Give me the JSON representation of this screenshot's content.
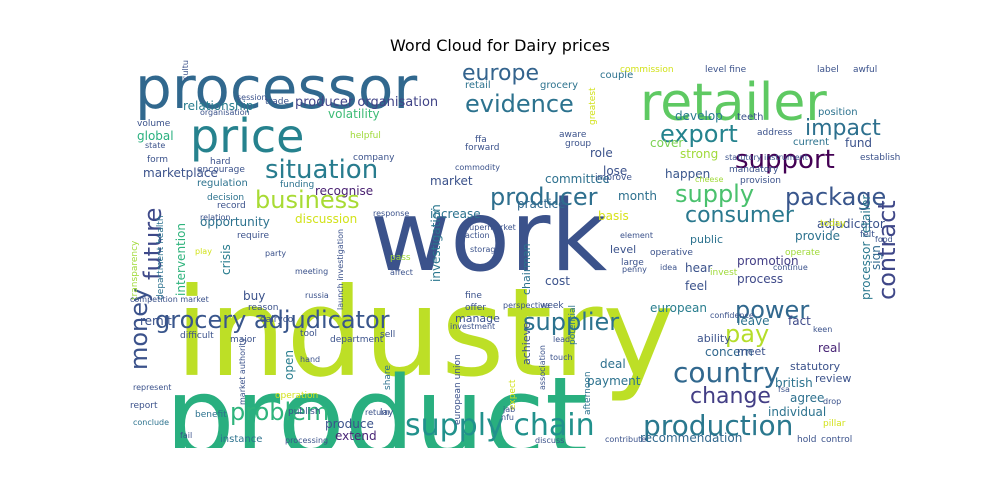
{
  "chart_data": {
    "type": "wordcloud",
    "title": "Word Cloud for Dairy prices",
    "colormap": "viridis",
    "words": [
      {
        "text": "industry",
        "weight": 1.0,
        "color": "#bddf26"
      },
      {
        "text": "product",
        "weight": 0.92,
        "color": "#29af7f"
      },
      {
        "text": "work",
        "weight": 0.76,
        "color": "#3b528b"
      },
      {
        "text": "processor",
        "weight": 0.5,
        "color": "#31688e"
      },
      {
        "text": "retailer",
        "weight": 0.46,
        "color": "#5ec962"
      },
      {
        "text": "price",
        "weight": 0.42,
        "color": "#26828e"
      },
      {
        "text": "supply chain",
        "weight": 0.26,
        "color": "#21918c"
      },
      {
        "text": "production",
        "weight": 0.24,
        "color": "#2a788e"
      },
      {
        "text": "country",
        "weight": 0.24,
        "color": "#31688e"
      },
      {
        "text": "support",
        "weight": 0.23,
        "color": "#440154"
      },
      {
        "text": "situation",
        "weight": 0.22,
        "color": "#287c8e"
      },
      {
        "text": "evidence",
        "weight": 0.21,
        "color": "#2c728e"
      },
      {
        "text": "export",
        "weight": 0.21,
        "color": "#25838e"
      },
      {
        "text": "business",
        "weight": 0.21,
        "color": "#a8db34"
      },
      {
        "text": "producer",
        "weight": 0.21,
        "color": "#2e6f8e"
      },
      {
        "text": "supplier",
        "weight": 0.2,
        "color": "#2c728e"
      },
      {
        "text": "grocery adjudicator",
        "weight": 0.2,
        "color": "#39568c"
      },
      {
        "text": "pay",
        "weight": 0.2,
        "color": "#b5de2b"
      },
      {
        "text": "power",
        "weight": 0.2,
        "color": "#31688e"
      },
      {
        "text": "supply",
        "weight": 0.2,
        "color": "#4ac16d"
      },
      {
        "text": "package",
        "weight": 0.19,
        "color": "#39568c"
      },
      {
        "text": "contract",
        "weight": 0.19,
        "color": "#3f4788"
      },
      {
        "text": "future",
        "weight": 0.19,
        "color": "#3e4989"
      },
      {
        "text": "money",
        "weight": 0.19,
        "color": "#3b528b"
      },
      {
        "text": "europe",
        "weight": 0.19,
        "color": "#33638d"
      },
      {
        "text": "impact",
        "weight": 0.18,
        "color": "#2d708e"
      },
      {
        "text": "consumer",
        "weight": 0.17,
        "color": "#2a788e"
      },
      {
        "text": "problem",
        "weight": 0.17,
        "color": "#2fb47c"
      },
      {
        "text": "change",
        "weight": 0.16,
        "color": "#433e85"
      },
      {
        "text": "producer organisation",
        "weight": 0.11,
        "color": "#414487"
      },
      {
        "text": "relationship",
        "weight": 0.11,
        "color": "#287d8e"
      },
      {
        "text": "volatility",
        "weight": 0.11,
        "color": "#3cbb75"
      },
      {
        "text": "intervention",
        "weight": 0.11,
        "color": "#2eb37c"
      },
      {
        "text": "investigation",
        "weight": 0.1,
        "color": "#2a778e"
      },
      {
        "text": "opportunity",
        "weight": 0.1,
        "color": "#2c728e"
      },
      {
        "text": "marketplace",
        "weight": 0.1,
        "color": "#3b528b"
      },
      {
        "text": "discussion",
        "weight": 0.1,
        "color": "#d2e21b"
      },
      {
        "text": "recognise",
        "weight": 0.09,
        "color": "#481f70"
      },
      {
        "text": "committee",
        "weight": 0.09,
        "color": "#2d708e"
      },
      {
        "text": "practice",
        "weight": 0.09,
        "color": "#31688e"
      },
      {
        "text": "increase",
        "weight": 0.09,
        "color": "#2c728e"
      },
      {
        "text": "strong",
        "weight": 0.09,
        "color": "#a0da39"
      },
      {
        "text": "develop",
        "weight": 0.09,
        "color": "#287c8e"
      },
      {
        "text": "global",
        "weight": 0.09,
        "color": "#2ab07f"
      },
      {
        "text": "adjudicator",
        "weight": 0.09,
        "color": "#3b528b"
      },
      {
        "text": "promotion",
        "weight": 0.09,
        "color": "#433e85"
      },
      {
        "text": "process",
        "weight": 0.09,
        "color": "#3e4989"
      },
      {
        "text": "european",
        "weight": 0.09,
        "color": "#287d8e"
      },
      {
        "text": "real",
        "weight": 0.09,
        "color": "#482576"
      },
      {
        "text": "fact",
        "weight": 0.09,
        "color": "#3e4a89"
      },
      {
        "text": "leave",
        "weight": 0.09,
        "color": "#2c728e"
      },
      {
        "text": "hear",
        "weight": 0.09,
        "color": "#3b528b"
      },
      {
        "text": "feel",
        "weight": 0.09,
        "color": "#3b528b"
      },
      {
        "text": "month",
        "weight": 0.08,
        "color": "#2d708e"
      },
      {
        "text": "happen",
        "weight": 0.08,
        "color": "#39568c"
      },
      {
        "text": "role",
        "weight": 0.08,
        "color": "#3b528b"
      },
      {
        "text": "lose",
        "weight": 0.08,
        "color": "#3b528b"
      },
      {
        "text": "cover",
        "weight": 0.08,
        "color": "#7ad151"
      },
      {
        "text": "market",
        "weight": 0.08,
        "color": "#3b528b"
      },
      {
        "text": "basis",
        "weight": 0.08,
        "color": "#d8e219"
      },
      {
        "text": "cost",
        "weight": 0.08,
        "color": "#3b528b"
      },
      {
        "text": "remit",
        "weight": 0.08,
        "color": "#3b528b"
      },
      {
        "text": "crisis",
        "weight": 0.08,
        "color": "#287c8e"
      },
      {
        "text": "buy",
        "weight": 0.08,
        "color": "#3b528b"
      },
      {
        "text": "deal",
        "weight": 0.08,
        "color": "#2d708e"
      },
      {
        "text": "payment",
        "weight": 0.08,
        "color": "#2c728e"
      },
      {
        "text": "british",
        "weight": 0.08,
        "color": "#2c728e"
      },
      {
        "text": "concern",
        "weight": 0.08,
        "color": "#31688e"
      },
      {
        "text": "agree",
        "weight": 0.08,
        "color": "#2d708e"
      },
      {
        "text": "open",
        "weight": 0.08,
        "color": "#287d8e"
      },
      {
        "text": "produce",
        "weight": 0.08,
        "color": "#3b528b"
      },
      {
        "text": "extend",
        "weight": 0.08,
        "color": "#482576"
      },
      {
        "text": "recommendation",
        "weight": 0.08,
        "color": "#31688e"
      },
      {
        "text": "individual",
        "weight": 0.08,
        "color": "#2c728e"
      },
      {
        "text": "processor retailer",
        "weight": 0.08,
        "color": "#2a788e"
      },
      {
        "text": "sign",
        "weight": 0.07,
        "color": "#31688e"
      },
      {
        "text": "provide",
        "weight": 0.07,
        "color": "#2c728e"
      },
      {
        "text": "fund",
        "weight": 0.07,
        "color": "#3b528b"
      },
      {
        "text": "ability",
        "weight": 0.07,
        "color": "#3b528b"
      },
      {
        "text": "review",
        "weight": 0.07,
        "color": "#3b528b"
      },
      {
        "text": "statutory",
        "weight": 0.07,
        "color": "#3b528b"
      },
      {
        "text": "meet",
        "weight": 0.07,
        "color": "#3b528b"
      },
      {
        "text": "public",
        "weight": 0.07,
        "color": "#2c728e"
      },
      {
        "text": "achieve",
        "weight": 0.07,
        "color": "#3b528b"
      },
      {
        "text": "manage",
        "weight": 0.07,
        "color": "#3b528b"
      },
      {
        "text": "level",
        "weight": 0.07,
        "color": "#3b528b"
      },
      {
        "text": "chairman",
        "weight": 0.07,
        "color": "#2c728e"
      },
      {
        "text": "retail",
        "weight": 0.07,
        "color": "#2c728e"
      },
      {
        "text": "grocery",
        "weight": 0.07,
        "color": "#2c728e"
      },
      {
        "text": "couple",
        "weight": 0.07,
        "color": "#2c728e"
      },
      {
        "text": "position",
        "weight": 0.07,
        "color": "#2c728e"
      },
      {
        "text": "current",
        "weight": 0.07,
        "color": "#2c728e"
      },
      {
        "text": "teeth",
        "weight": 0.07,
        "color": "#3b528b"
      },
      {
        "text": "address",
        "weight": 0.06,
        "color": "#3b528b"
      },
      {
        "text": "label",
        "weight": 0.06,
        "color": "#3b528b"
      },
      {
        "text": "awful",
        "weight": 0.06,
        "color": "#3b528b"
      },
      {
        "text": "level fine",
        "weight": 0.06,
        "color": "#3b528b"
      },
      {
        "text": "commission",
        "weight": 0.06,
        "color": "#d2e21b"
      },
      {
        "text": "volume",
        "weight": 0.06,
        "color": "#3b528b"
      },
      {
        "text": "form",
        "weight": 0.06,
        "color": "#3b528b"
      },
      {
        "text": "decision",
        "weight": 0.06,
        "color": "#2c728e"
      },
      {
        "text": "hard",
        "weight": 0.06,
        "color": "#3b528b"
      },
      {
        "text": "regulation",
        "weight": 0.06,
        "color": "#2c728e"
      },
      {
        "text": "funding",
        "weight": 0.06,
        "color": "#2c728e"
      },
      {
        "text": "require",
        "weight": 0.06,
        "color": "#3b528b"
      },
      {
        "text": "reason",
        "weight": 0.06,
        "color": "#3b528b"
      },
      {
        "text": "difficult",
        "weight": 0.06,
        "color": "#3b528b"
      },
      {
        "text": "benefit",
        "weight": 0.06,
        "color": "#2c728e"
      },
      {
        "text": "instance",
        "weight": 0.06,
        "color": "#2c728e"
      },
      {
        "text": "publish",
        "weight": 0.06,
        "color": "#3b528b"
      },
      {
        "text": "lay",
        "weight": 0.06,
        "color": "#3b528b"
      },
      {
        "text": "sell",
        "weight": 0.06,
        "color": "#3b528b"
      },
      {
        "text": "share",
        "weight": 0.06,
        "color": "#2c728e"
      },
      {
        "text": "tool",
        "weight": 0.06,
        "color": "#3b528b"
      },
      {
        "text": "fine",
        "weight": 0.06,
        "color": "#3b528b"
      },
      {
        "text": "offer",
        "weight": 0.06,
        "color": "#3b528b"
      },
      {
        "text": "pass",
        "weight": 0.06,
        "color": "#a0da39"
      },
      {
        "text": "improve",
        "weight": 0.06,
        "color": "#3b528b"
      },
      {
        "text": "operative",
        "weight": 0.06,
        "color": "#3b528b"
      },
      {
        "text": "large",
        "weight": 0.06,
        "color": "#3b528b"
      },
      {
        "text": "invest",
        "weight": 0.06,
        "color": "#a0da39"
      },
      {
        "text": "operate",
        "weight": 0.05,
        "color": "#a0da39"
      },
      {
        "text": "today",
        "weight": 0.05,
        "color": "#d2e21b"
      },
      {
        "text": "hold",
        "weight": 0.05,
        "color": "#3b528b"
      },
      {
        "text": "control",
        "weight": 0.05,
        "color": "#3b528b"
      },
      {
        "text": "pillar",
        "weight": 0.05,
        "color": "#d2e21b"
      },
      {
        "text": "felt",
        "weight": 0.05,
        "color": "#3b528b"
      },
      {
        "text": "report",
        "weight": 0.05,
        "color": "#3b528b"
      },
      {
        "text": "week",
        "weight": 0.05,
        "color": "#3b528b"
      },
      {
        "text": "potential",
        "weight": 0.05,
        "color": "#2c728e"
      },
      {
        "text": "afternoon",
        "weight": 0.05,
        "color": "#2c728e"
      },
      {
        "text": "expect",
        "weight": 0.05,
        "color": "#d2e21b"
      },
      {
        "text": "encourage",
        "weight": 0.05,
        "color": "#3b528b"
      },
      {
        "text": "record",
        "weight": 0.05,
        "color": "#3b528b"
      },
      {
        "text": "european union",
        "weight": 0.05,
        "color": "#3b528b"
      },
      {
        "text": "dairyco",
        "weight": 0.05,
        "color": "#3b528b"
      },
      {
        "text": "major",
        "weight": 0.05,
        "color": "#3b528b"
      },
      {
        "text": "department",
        "weight": 0.05,
        "color": "#3b528b"
      },
      {
        "text": "helpful",
        "weight": 0.05,
        "color": "#a0da39"
      },
      {
        "text": "company",
        "weight": 0.05,
        "color": "#3b528b"
      },
      {
        "text": "forward",
        "weight": 0.05,
        "color": "#3b528b"
      },
      {
        "text": "ffa",
        "weight": 0.05,
        "color": "#3b528b"
      },
      {
        "text": "aware",
        "weight": 0.05,
        "color": "#3b528b"
      },
      {
        "text": "group",
        "weight": 0.05,
        "color": "#3b528b"
      },
      {
        "text": "greatest",
        "weight": 0.04,
        "color": "#d2e21b"
      },
      {
        "text": "trade",
        "weight": 0.05,
        "color": "#3b528b"
      },
      {
        "text": "transparency",
        "weight": 0.05,
        "color": "#a0da39"
      },
      {
        "text": "department health",
        "weight": 0.05,
        "color": "#2c728e"
      },
      {
        "text": "operation",
        "weight": 0.05,
        "color": "#d2e21b"
      },
      {
        "text": "establish",
        "weight": 0.04,
        "color": "#3b528b"
      },
      {
        "text": "mandatory",
        "weight": 0.04,
        "color": "#3b528b"
      },
      {
        "text": "provision",
        "weight": 0.04,
        "color": "#3b528b"
      },
      {
        "text": "statutory instrument",
        "weight": 0.04,
        "color": "#3b528b"
      },
      {
        "text": "cheese",
        "weight": 0.04,
        "color": "#a0da39"
      },
      {
        "text": "continue",
        "weight": 0.04,
        "color": "#3b528b"
      },
      {
        "text": "food",
        "weight": 0.04,
        "color": "#3b528b"
      },
      {
        "text": "keen",
        "weight": 0.04,
        "color": "#3b528b"
      },
      {
        "text": "fsa",
        "weight": 0.04,
        "color": "#3b528b"
      },
      {
        "text": "drop",
        "weight": 0.04,
        "color": "#3b528b"
      },
      {
        "text": "fail",
        "weight": 0.04,
        "color": "#3b528b"
      },
      {
        "text": "conclude",
        "weight": 0.04,
        "color": "#2c728e"
      },
      {
        "text": "represent",
        "weight": 0.04,
        "color": "#3b528b"
      },
      {
        "text": "processing",
        "weight": 0.04,
        "color": "#3b528b"
      },
      {
        "text": "contribute",
        "weight": 0.04,
        "color": "#3b528b"
      },
      {
        "text": "discuss",
        "weight": 0.04,
        "color": "#3b528b"
      },
      {
        "text": "lead",
        "weight": 0.04,
        "color": "#3b528b"
      },
      {
        "text": "perspective",
        "weight": 0.04,
        "color": "#3b528b"
      },
      {
        "text": "investment",
        "weight": 0.04,
        "color": "#3b528b"
      },
      {
        "text": "confidence",
        "weight": 0.04,
        "color": "#3b528b"
      },
      {
        "text": "penny",
        "weight": 0.04,
        "color": "#3b528b"
      },
      {
        "text": "idea",
        "weight": 0.04,
        "color": "#3b528b"
      },
      {
        "text": "element",
        "weight": 0.04,
        "color": "#3b528b"
      },
      {
        "text": "storage",
        "weight": 0.04,
        "color": "#3b528b"
      },
      {
        "text": "action",
        "weight": 0.04,
        "color": "#3b528b"
      },
      {
        "text": "supermarket",
        "weight": 0.04,
        "color": "#3b528b"
      },
      {
        "text": "commodity",
        "weight": 0.04,
        "color": "#3b528b"
      },
      {
        "text": "response",
        "weight": 0.04,
        "color": "#3b528b"
      },
      {
        "text": "relation",
        "weight": 0.04,
        "color": "#3b528b"
      },
      {
        "text": "party",
        "weight": 0.04,
        "color": "#3b528b"
      },
      {
        "text": "meeting",
        "weight": 0.04,
        "color": "#3b528b"
      },
      {
        "text": "launch investigation",
        "weight": 0.04,
        "color": "#3b528b"
      },
      {
        "text": "russia",
        "weight": 0.04,
        "color": "#3b528b"
      },
      {
        "text": "affect",
        "weight": 0.04,
        "color": "#3b528b"
      },
      {
        "text": "competition market",
        "weight": 0.04,
        "color": "#3b528b"
      },
      {
        "text": "market authority",
        "weight": 0.04,
        "color": "#3b528b"
      },
      {
        "text": "hand",
        "weight": 0.04,
        "color": "#3b528b"
      },
      {
        "text": "return",
        "weight": 0.04,
        "color": "#3b528b"
      },
      {
        "text": "jab",
        "weight": 0.04,
        "color": "#3b528b"
      },
      {
        "text": "nfu",
        "weight": 0.04,
        "color": "#3b528b"
      },
      {
        "text": "touch",
        "weight": 0.04,
        "color": "#3b528b"
      },
      {
        "text": "association",
        "weight": 0.04,
        "color": "#3b528b"
      },
      {
        "text": "session",
        "weight": 0.04,
        "color": "#3b528b"
      },
      {
        "text": "organisation",
        "weight": 0.04,
        "color": "#3b528b"
      },
      {
        "text": "culture",
        "weight": 0.04,
        "color": "#3b528b"
      },
      {
        "text": "state",
        "weight": 0.04,
        "color": "#3b528b"
      },
      {
        "text": "play",
        "weight": 0.04,
        "color": "#d2e21b"
      }
    ]
  }
}
